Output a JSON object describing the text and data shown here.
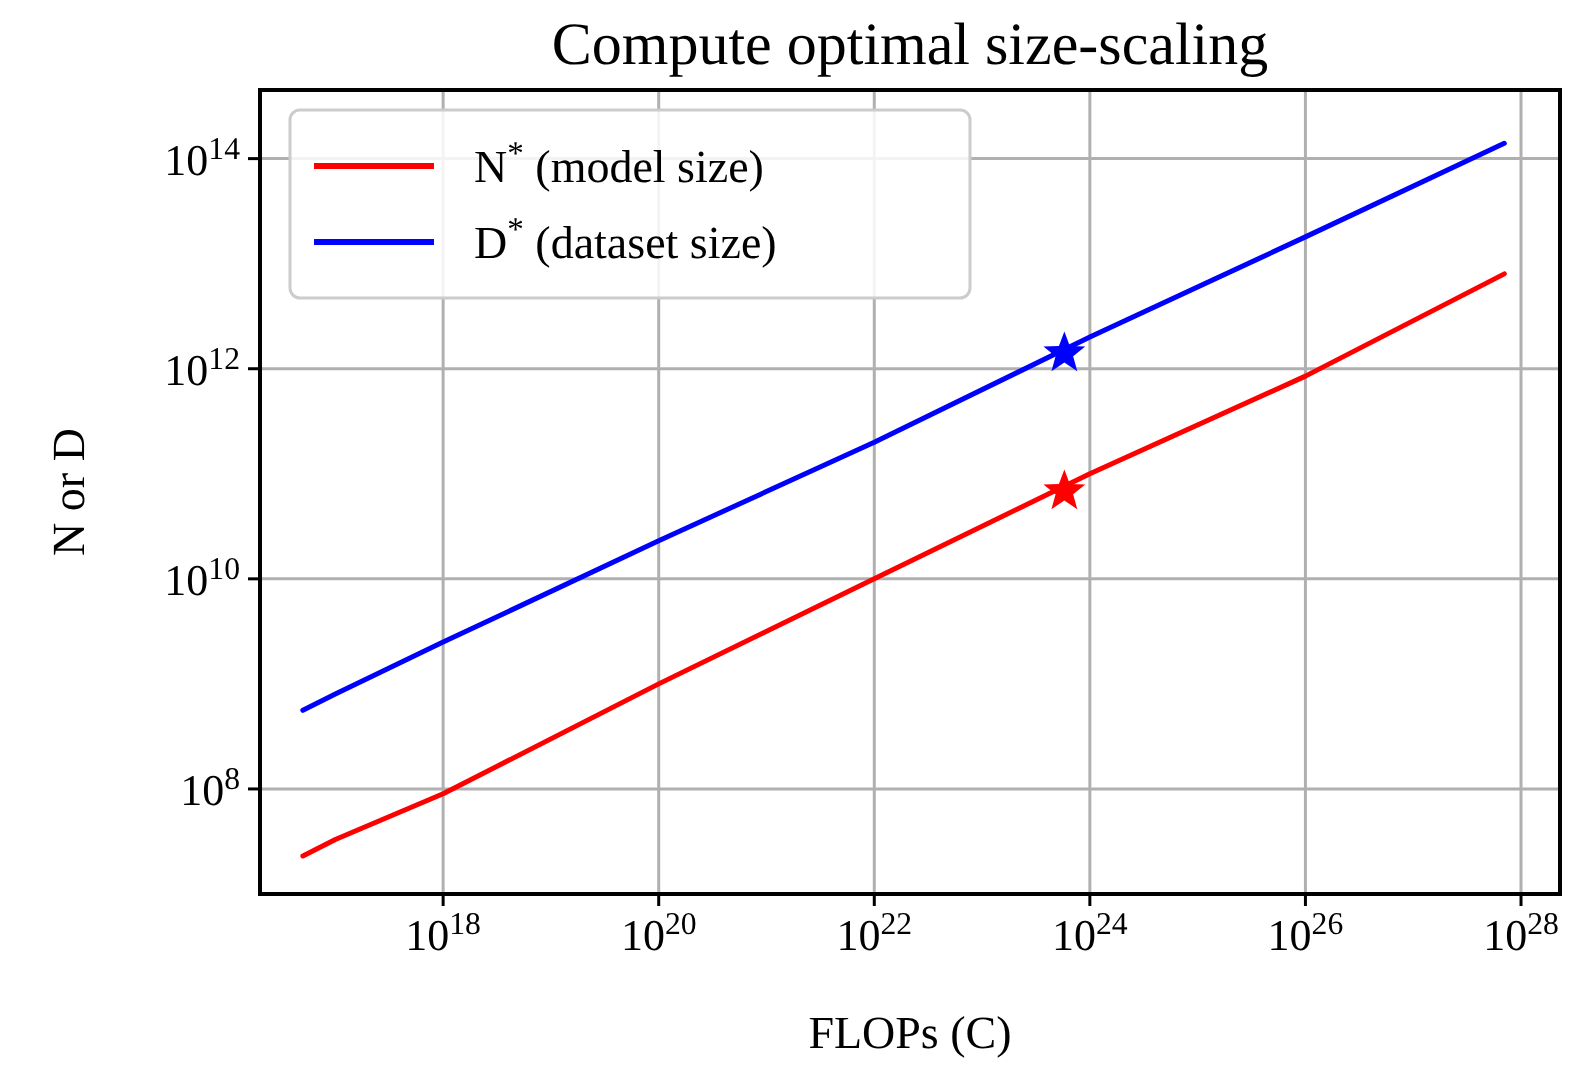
{
  "chart_data": {
    "type": "line",
    "title": "Compute optimal size-scaling",
    "xlabel": "FLOPs (C)",
    "ylabel": "N or D",
    "log": "xy",
    "grid": true,
    "legend": "top left",
    "line_style": "solid",
    "marker": "none",
    "xlim": [
      2e+16,
      2.3e+28
    ],
    "ylim": [
      10000000.0,
      450000000000000.0
    ],
    "xticks": [
      {
        "value": 1e+18,
        "label": "10$^{18}$"
      },
      {
        "value": 1e+20,
        "label": "10$^{20}$"
      },
      {
        "value": 1e+22,
        "label": "10$^{22}$"
      },
      {
        "value": 1e+24,
        "label": "10$^{24}$"
      },
      {
        "value": 1e+26,
        "label": "10$^{26}$"
      },
      {
        "value": 1e+28,
        "label": "10$^{28}$"
      }
    ],
    "yticks": [
      {
        "value": 100000000.0,
        "label": "10$^{8}$"
      },
      {
        "value": 10000000000.0,
        "label": "10$^{10}$"
      },
      {
        "value": 1000000000000.0,
        "label": "10$^{12}$"
      },
      {
        "value": 100000000000000.0,
        "label": "10$^{14}$"
      }
    ],
    "series": [
      {
        "name": "N$^{*}$ (model size)",
        "color": "#ff0000",
        "x": [
          5e+16,
          1e+17,
          1e+18,
          1e+20,
          1e+22,
          1e+24,
          1e+26,
          7e+27
        ],
        "values": [
          23000000.0,
          33000000.0,
          90000000.0,
          1000000000.0,
          10000000000.0,
          100000000000.0,
          850000000000.0,
          8000000000000.0
        ]
      },
      {
        "name": "D$^{*}$ (dataset size)",
        "color": "#0000ff",
        "x": [
          5e+16,
          1e+17,
          1e+18,
          1e+20,
          1e+22,
          1e+24,
          1e+26,
          7e+27
        ],
        "values": [
          560000000.0,
          800000000.0,
          2500000000.0,
          23000000000.0,
          200000000000.0,
          2000000000000.0,
          18000000000000.0,
          140000000000000.0
        ]
      },
      {
        "type": "scatter",
        "marker": "star",
        "colors": [
          "#ff0000",
          "#0000ff"
        ],
        "x": [
          5.8e+23,
          5.8e+23
        ],
        "values": [
          68000000000.0,
          1400000000000.0
        ]
      }
    ]
  }
}
